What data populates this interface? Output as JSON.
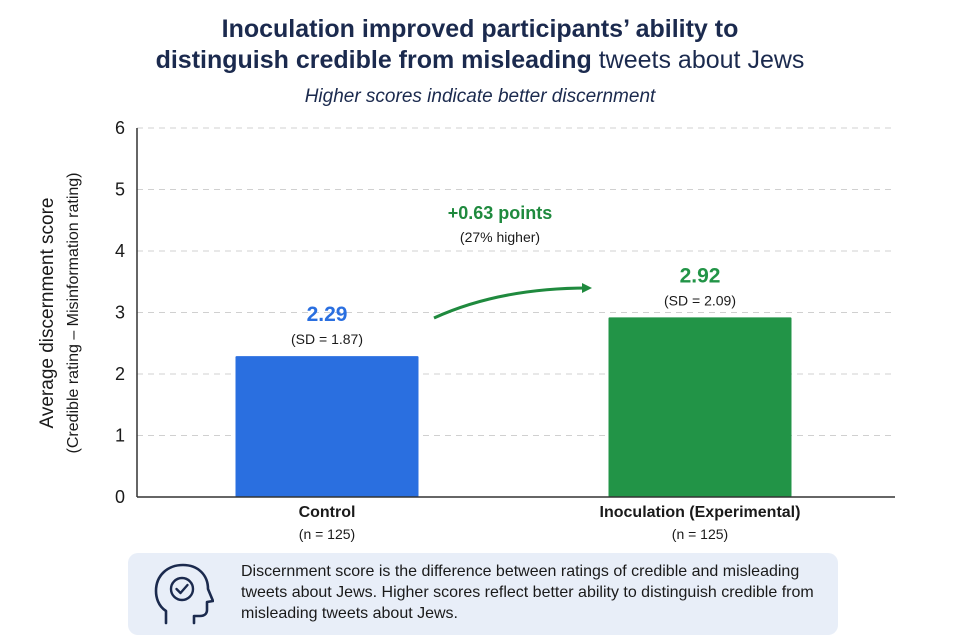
{
  "header": {
    "title_line1": "Inoculation improved participants’ ability to",
    "title_line2_bold": "distinguish credible from misleading",
    "title_line2_rest": "tweets about Jews",
    "subtitle": "Higher scores indicate better discernment"
  },
  "chart_data": {
    "type": "bar",
    "title": "Inoculation improved participants’ ability to distinguish credible from misleading tweets about Jews",
    "subtitle": "Higher scores indicate better discernment",
    "ylabel": "Average discernment score",
    "ylabel_sub": "(Credible rating – Misinformation rating)",
    "ylim": [
      0,
      6
    ],
    "yticks": [
      "0",
      "1",
      "2",
      "3",
      "4",
      "5",
      "6"
    ],
    "grid": true,
    "categories": [
      "Control",
      "Inoculation (Experimental)"
    ],
    "category_notes": [
      "(n = 125)",
      "(n = 125)"
    ],
    "values": [
      2.29,
      2.92
    ],
    "value_labels": [
      "2.29",
      "2.92"
    ],
    "sd_labels": [
      "(SD = 1.87)",
      "(SD = 2.09)"
    ],
    "colors": [
      "#2a6fe0",
      "#229447"
    ],
    "annotation": {
      "main": "+0.63 points",
      "sub": "(27% higher)",
      "color": "#1f8a3e"
    }
  },
  "note": {
    "icon": "head-checkmark-icon",
    "text": "Discernment score is the difference between ratings of credible and misleading tweets about Jews. Higher scores reflect better ability to distinguish credible from misleading tweets about Jews."
  }
}
